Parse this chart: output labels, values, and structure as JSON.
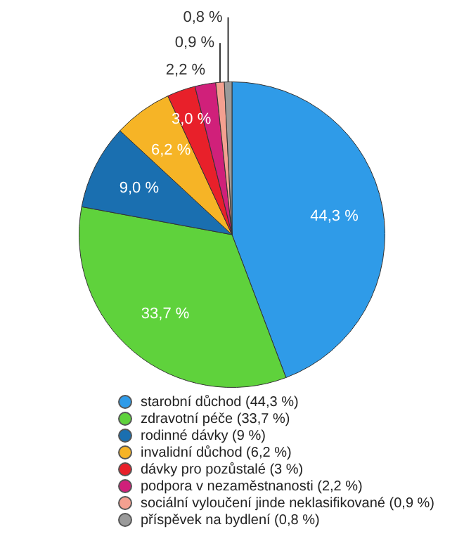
{
  "chart_data": {
    "type": "pie",
    "categories": [
      "starobní důchod (44,3 %)",
      "zdravotní péče (33,7 %)",
      "rodinné dávky (9 %)",
      "invalidní důchod (6,2 %)",
      "dávky pro pozůstalé (3 %)",
      "podpora v nezaměstnanosti (2,2 %)",
      "sociální vyloučení jinde neklasifikované (0,9 %)",
      "příspěvek na bydlení (0,8 %)"
    ],
    "values": [
      44.3,
      33.7,
      9.0,
      6.2,
      3.0,
      2.2,
      0.9,
      0.8
    ],
    "colors": [
      "#2f9be8",
      "#5fd23c",
      "#1a6fb0",
      "#f6b426",
      "#e8202a",
      "#d0207a",
      "#f4a090",
      "#9a9a9a"
    ],
    "value_labels": [
      "44,3 %",
      "33,7 %",
      "9,0 %",
      "6,2 %",
      "3,0 %",
      "2,2 %",
      "0,9 %",
      "0,8 %"
    ],
    "legend": "bottom"
  }
}
